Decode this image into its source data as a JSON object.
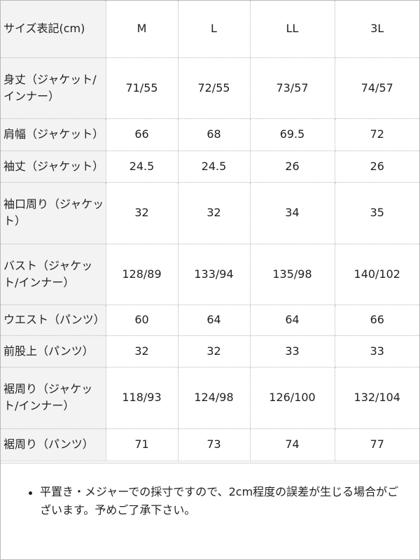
{
  "table": {
    "header": [
      "サイズ表記(cm)",
      "M",
      "L",
      "LL",
      "3L"
    ],
    "rows": [
      {
        "label": "身丈（ジャケット/インナー）",
        "values": [
          "71/55",
          "72/55",
          "73/57",
          "74/57"
        ]
      },
      {
        "label": "肩幅（ジャケット）",
        "values": [
          "66",
          "68",
          "69.5",
          "72"
        ]
      },
      {
        "label": "袖丈（ジャケット）",
        "values": [
          "24.5",
          "24.5",
          "26",
          "26"
        ]
      },
      {
        "label": "袖口周り（ジャケット）",
        "values": [
          "32",
          "32",
          "34",
          "35"
        ]
      },
      {
        "label": "バスト（ジャケット/インナー）",
        "values": [
          "128/89",
          "133/94",
          "135/98",
          "140/102"
        ]
      },
      {
        "label": "ウエスト（パンツ）",
        "values": [
          "60",
          "64",
          "64",
          "66"
        ]
      },
      {
        "label": "前股上（パンツ）",
        "values": [
          "32",
          "32",
          "33",
          "33"
        ]
      },
      {
        "label": "裾周り（ジャケット/インナー）",
        "values": [
          "118/93",
          "124/98",
          "126/100",
          "132/104"
        ]
      },
      {
        "label": "裾周り（パンツ）",
        "values": [
          "71",
          "73",
          "74",
          "77"
        ]
      }
    ]
  },
  "note": "平置き・メジャーでの採寸ですので、2cm程度の誤差が生じる場合がございます。予めご了承下さい。"
}
